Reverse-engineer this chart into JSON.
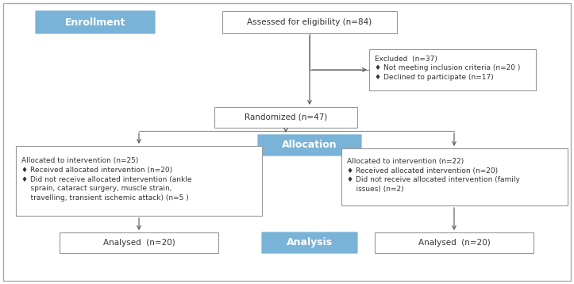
{
  "background_color": "#ffffff",
  "box_bg_white": "#ffffff",
  "box_bg_blue": "#7ab3d8",
  "box_border_color": "#999999",
  "text_color_dark": "#333333",
  "text_color_white": "#ffffff",
  "outer_border_color": "#aaaaaa",
  "enrollment_label": "Enrollment",
  "allocation_label": "Allocation",
  "analysis_label": "Analysis",
  "box1_text": "Assessed for eligibility (n=84)",
  "box2_text": "Excluded  (n=37)\n♦ Not meeting inclusion criteria (n=20 )\n♦ Declined to participate (n=17)",
  "box3_text": "Randomized (n=47)",
  "box4_text": "Allocated to intervention (n=25)\n♦ Received allocated intervention (n=20)\n♦ Did not receive allocated intervention (ankle\n    sprain, cataract surgery, muscle strain,\n    travelling, transient ischemic attack) (n=5 )",
  "box5_text": "Allocated to intervention (n=22)\n♦ Received allocated intervention (n=20)\n♦ Did not receive allocated intervention (family\n    issues) (n=2)",
  "box6_text": "Analysed  (n=20)",
  "box7_text": "Analysed  (n=20)"
}
